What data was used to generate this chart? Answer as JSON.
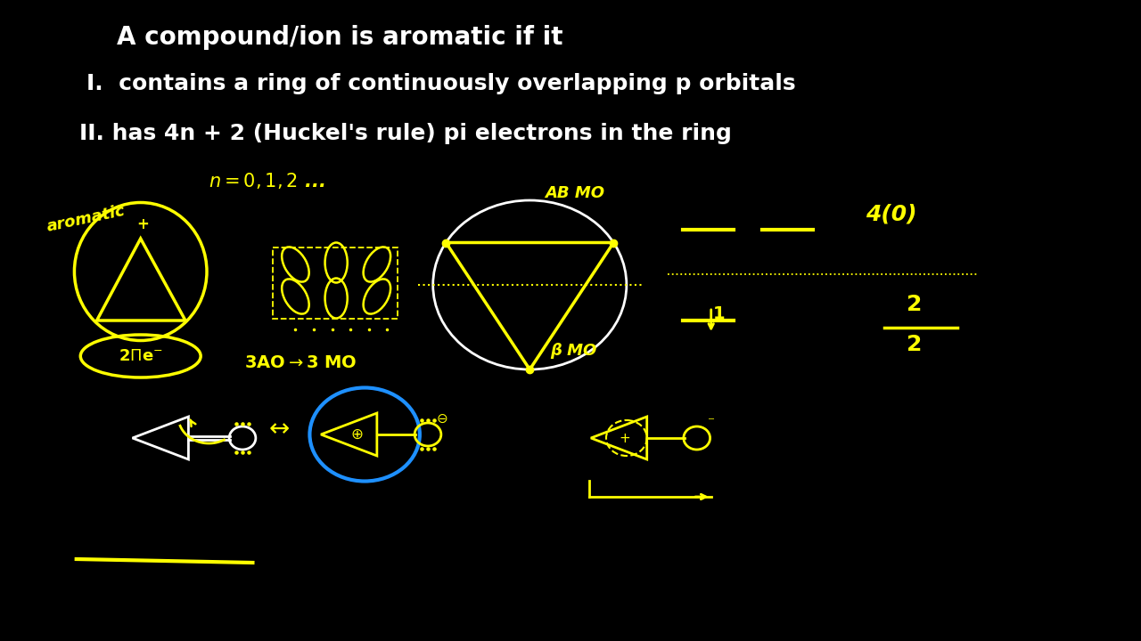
{
  "bg_color": "#000000",
  "title_text": "A compound/ion is aromatic if it",
  "line1_text": "I.  contains a ring of continuously overlapping p orbitals",
  "line2_text": "II. has 4n + 2 (Huckel's rule) pi electrons in the ring",
  "handwritten_color": "#FFFF00",
  "white_color": "#FFFFFF",
  "blue_color": "#1E90FF",
  "title_color": "#FFFFFF",
  "figsize": [
    12.8,
    7.2
  ],
  "dpi": 100
}
